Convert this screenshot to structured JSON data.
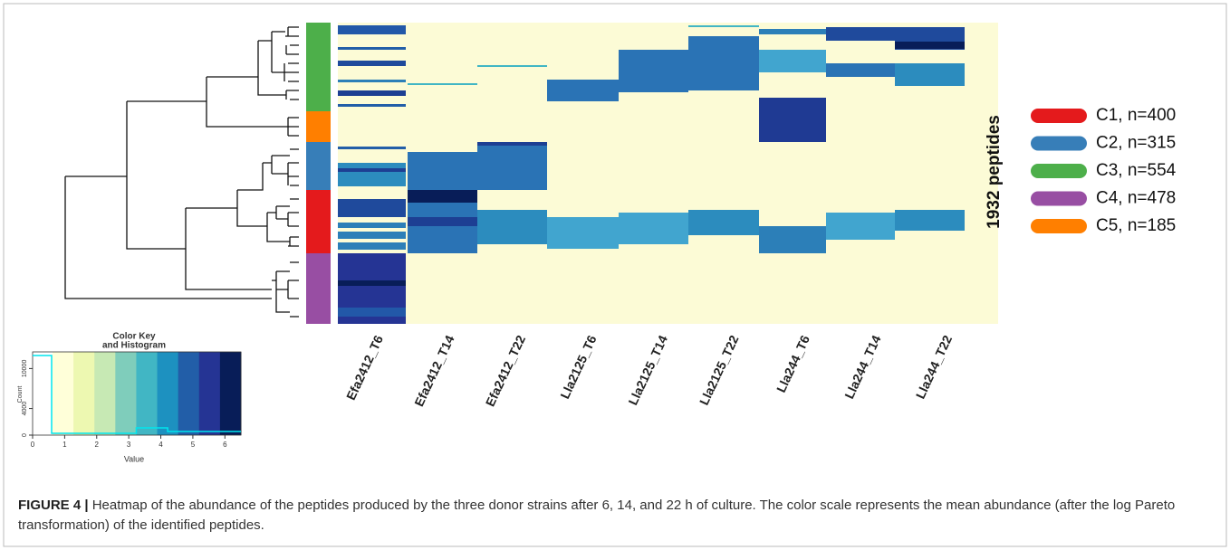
{
  "figure": {
    "row_annotation_label": "1932 peptides",
    "legend": [
      {
        "label": "C1, n=400",
        "color": "#e41a1c"
      },
      {
        "label": "C2, n=315",
        "color": "#377eb8"
      },
      {
        "label": "C3, n=554",
        "color": "#4daf4a"
      },
      {
        "label": "C4, n=478",
        "color": "#984ea3"
      },
      {
        "label": "C5, n=185",
        "color": "#ff7f00"
      }
    ],
    "columns": [
      "Efa2412_T6",
      "Efa2412_T14",
      "Efa2412_T22",
      "Lla2125_T6",
      "Lla2125_T14",
      "Lla2125_T22",
      "Lla244_T6",
      "Lla244_T14",
      "Lla244_T22"
    ],
    "color_key": {
      "title": "Color Key",
      "subtitle": "and Histogram",
      "x_label": "Value",
      "y_label": "Count",
      "xlim": [
        0,
        6.5
      ],
      "xticks": [
        0,
        1,
        2,
        3,
        4,
        5,
        6
      ],
      "ylim": [
        0,
        12500
      ],
      "yticks": [
        0,
        4000,
        10000
      ]
    }
  },
  "caption": {
    "label": "FIGURE 4 |",
    "text": "Heatmap of the abundance of the peptides produced by the three donor strains after 6, 14, and 22 h of culture. The color scale represents the mean abundance (after the log Pareto transformation) of the identified peptides."
  }
}
